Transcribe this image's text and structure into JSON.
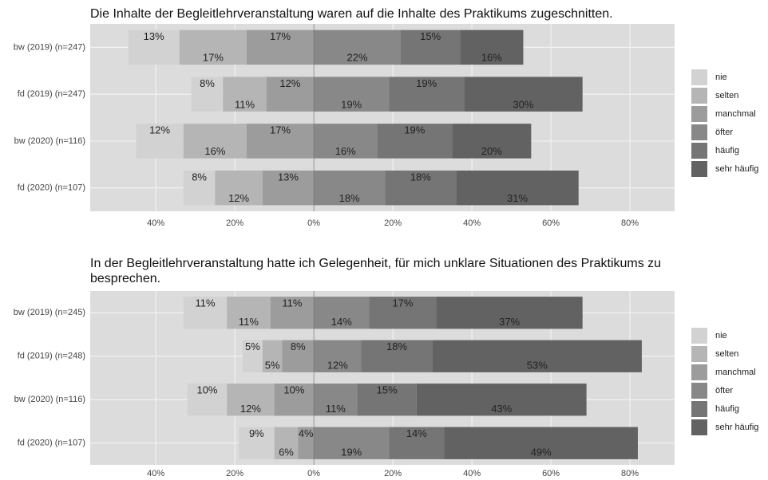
{
  "chart_data": [
    {
      "type": "diverging_bar",
      "title": "Die Inhalte der Begleitlehrveranstaltung waren auf die Inhalte des Praktikums zugeschnitten.",
      "categories": [
        "bw (2019) (n=247)",
        "fd (2019) (n=247)",
        "bw (2020) (n=116)",
        "fd (2020) (n=107)"
      ],
      "series": [
        {
          "name": "nie",
          "color": "#d2d2d2",
          "values": [
            -13,
            -8,
            -12,
            -8
          ],
          "value_labels": [
            "13%",
            "8%",
            "12%",
            "8%"
          ]
        },
        {
          "name": "selten",
          "color": "#b5b5b5",
          "values": [
            -17,
            -11,
            -16,
            -12
          ],
          "value_labels": [
            "17%",
            "11%",
            "16%",
            "12%"
          ]
        },
        {
          "name": "manchmal",
          "color": "#9c9c9c",
          "values": [
            -17,
            -12,
            -17,
            -13
          ],
          "value_labels": [
            "17%",
            "12%",
            "17%",
            "13%"
          ]
        },
        {
          "name": "öfter",
          "color": "#888888",
          "values": [
            22,
            19,
            16,
            18
          ],
          "value_labels": [
            "22%",
            "19%",
            "16%",
            "18%"
          ]
        },
        {
          "name": "häufig",
          "color": "#757575",
          "values": [
            15,
            19,
            19,
            18
          ],
          "value_labels": [
            "15%",
            "19%",
            "19%",
            "18%"
          ]
        },
        {
          "name": "sehr häufig",
          "color": "#626262",
          "values": [
            16,
            30,
            20,
            31
          ],
          "value_labels": [
            "16%",
            "30%",
            "20%",
            "31%"
          ]
        }
      ],
      "xlim": [
        -56.6,
        91.3
      ],
      "xticks": [
        {
          "value": -40,
          "label": "40%"
        },
        {
          "value": -20,
          "label": "20%"
        },
        {
          "value": 0,
          "label": "0%"
        },
        {
          "value": 20,
          "label": "20%"
        },
        {
          "value": 40,
          "label": "40%"
        },
        {
          "value": 60,
          "label": "60%"
        },
        {
          "value": 80,
          "label": "80%"
        }
      ],
      "grid": true
    },
    {
      "type": "diverging_bar",
      "title": "In der Begleitlehrveranstaltung hatte ich Gelegenheit, für mich unklare Situationen des Praktikums zu besprechen.",
      "categories": [
        "bw (2019) (n=245)",
        "fd (2019) (n=248)",
        "bw (2020) (n=116)",
        "fd (2020) (n=107)"
      ],
      "series": [
        {
          "name": "nie",
          "color": "#d2d2d2",
          "values": [
            -11,
            -5,
            -10,
            -9
          ],
          "value_labels": [
            "11%",
            "5%",
            "10%",
            "9%"
          ]
        },
        {
          "name": "selten",
          "color": "#b5b5b5",
          "values": [
            -11,
            -5,
            -12,
            -6
          ],
          "value_labels": [
            "11%",
            "5%",
            "12%",
            "6%"
          ]
        },
        {
          "name": "manchmal",
          "color": "#9c9c9c",
          "values": [
            -11,
            -8,
            -10,
            -4
          ],
          "value_labels": [
            "11%",
            "8%",
            "10%",
            "4%"
          ]
        },
        {
          "name": "öfter",
          "color": "#888888",
          "values": [
            14,
            12,
            11,
            19
          ],
          "value_labels": [
            "14%",
            "12%",
            "11%",
            "19%"
          ]
        },
        {
          "name": "häufig",
          "color": "#757575",
          "values": [
            17,
            18,
            15,
            14
          ],
          "value_labels": [
            "17%",
            "18%",
            "15%",
            "14%"
          ]
        },
        {
          "name": "sehr häufig",
          "color": "#626262",
          "values": [
            37,
            53,
            43,
            49
          ],
          "value_labels": [
            "37%",
            "53%",
            "43%",
            "49%"
          ]
        }
      ],
      "xlim": [
        -56.6,
        91.3
      ],
      "xticks": [
        {
          "value": -40,
          "label": "40%"
        },
        {
          "value": -20,
          "label": "20%"
        },
        {
          "value": 0,
          "label": "0%"
        },
        {
          "value": 20,
          "label": "20%"
        },
        {
          "value": 40,
          "label": "40%"
        },
        {
          "value": 60,
          "label": "60%"
        },
        {
          "value": 80,
          "label": "80%"
        }
      ],
      "grid": true
    }
  ]
}
